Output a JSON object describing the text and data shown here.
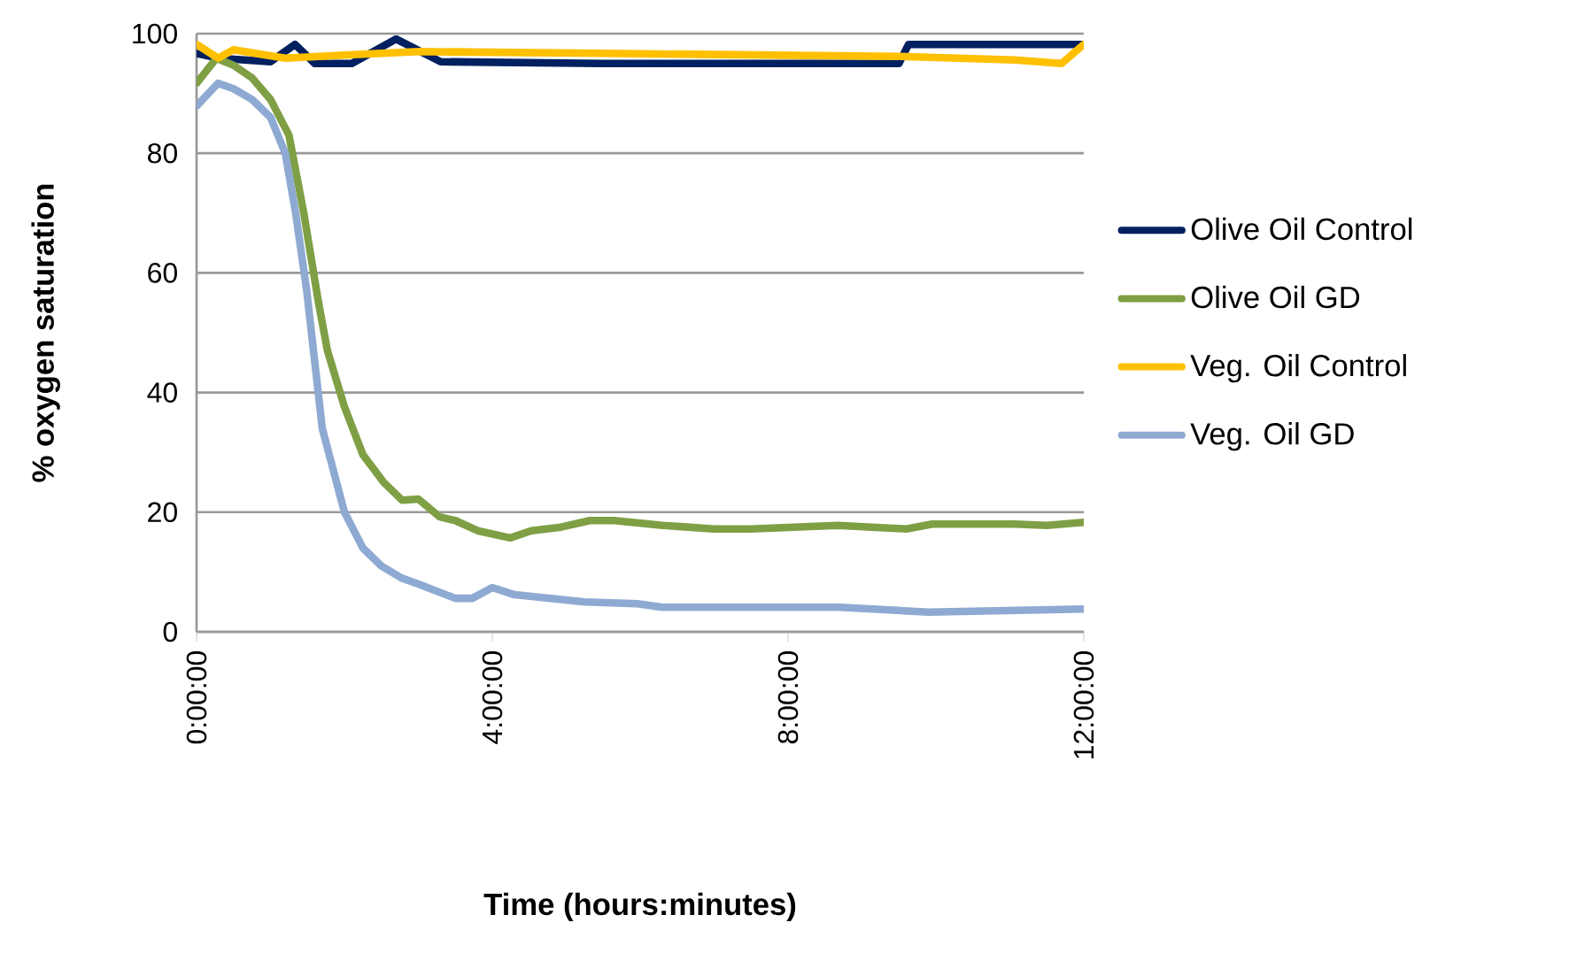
{
  "chart_data": {
    "type": "line",
    "xlabel": "Time (hours:minutes)",
    "ylabel": "% oxygen saturation",
    "xlim": [
      0,
      12
    ],
    "xticks": [
      {
        "value": 0,
        "label": "0:00:00"
      },
      {
        "value": 4,
        "label": "4:00:00"
      },
      {
        "value": 8,
        "label": "8:00:00"
      },
      {
        "value": 12,
        "label": "12:00:00"
      }
    ],
    "ylim": [
      0,
      100
    ],
    "yticks": [
      0,
      20,
      40,
      60,
      80,
      100
    ],
    "grid": "y",
    "legend": "right",
    "marker": "none",
    "line_style": "solid",
    "series": [
      {
        "name": "Olive Oil Control",
        "color": "#002060",
        "x": [
          0,
          0.3,
          1.0,
          1.33,
          1.6,
          2.1,
          2.7,
          3.3,
          5.5,
          9.5,
          9.63,
          12
        ],
        "values": [
          96.7,
          95.9,
          95.3,
          98.2,
          95,
          95,
          99.1,
          95.3,
          95,
          95,
          98.2,
          98.2
        ]
      },
      {
        "name": "Olive Oil GD",
        "color": "#7f9f45",
        "x": [
          0,
          0.27,
          0.5,
          0.75,
          1.0,
          1.25,
          1.45,
          1.65,
          1.77,
          2.0,
          2.25,
          2.53,
          2.78,
          3.0,
          3.29,
          3.5,
          3.8,
          4.24,
          4.53,
          4.93,
          5.32,
          5.65,
          6.3,
          7.0,
          7.5,
          8.67,
          9.6,
          9.95,
          11.07,
          11.5,
          12
        ],
        "values": [
          91.7,
          95.9,
          94.7,
          92.6,
          89,
          83,
          70,
          55,
          47,
          37.6,
          29.6,
          25,
          22,
          22.2,
          19.2,
          18.6,
          16.9,
          15.7,
          16.9,
          17.5,
          18.6,
          18.6,
          17.8,
          17.2,
          17.2,
          17.8,
          17.2,
          18,
          18,
          17.8,
          18.3
        ]
      },
      {
        "name": "Veg. Oil Control",
        "color": "#ffc000",
        "x": [
          0,
          0.29,
          0.5,
          1.2,
          2.0,
          3.0,
          5.5,
          9.5,
          11.07,
          11.7,
          12
        ],
        "values": [
          98.2,
          95.9,
          97.3,
          95.9,
          96.4,
          97,
          96.7,
          96.2,
          95.6,
          95,
          98.2
        ]
      },
      {
        "name": "Veg. Oil GD",
        "color": "#8eaad2",
        "x": [
          0,
          0.29,
          0.5,
          0.75,
          1.0,
          1.2,
          1.34,
          1.49,
          1.7,
          2.0,
          2.25,
          2.5,
          2.77,
          3.0,
          3.5,
          3.73,
          4.0,
          4.3,
          5.25,
          5.96,
          6.3,
          7.5,
          8.7,
          9.9,
          12
        ],
        "values": [
          87.9,
          91.7,
          90.8,
          89,
          86,
          80,
          70,
          57,
          34,
          20,
          14,
          11,
          9,
          8,
          5.6,
          5.6,
          7.4,
          6.2,
          5,
          4.7,
          4.1,
          4.1,
          4.1,
          3.3,
          3.8
        ]
      }
    ]
  }
}
